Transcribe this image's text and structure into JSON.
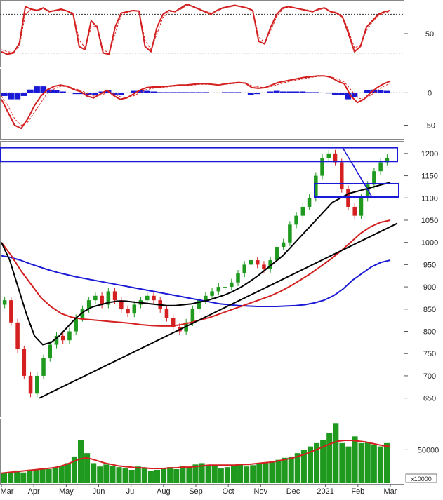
{
  "chart_data": [
    {
      "panel": "stochastic",
      "type": "line",
      "y_ticks": [
        50
      ],
      "ylim": [
        0,
        100
      ],
      "reference_levels": [
        80,
        20
      ],
      "series": [
        {
          "color": "#d42020",
          "style": "solid",
          "values": [
            22,
            18,
            20,
            35,
            92,
            88,
            86,
            90,
            84,
            86,
            88,
            85,
            80,
            30,
            25,
            70,
            60,
            20,
            18,
            60,
            82,
            84,
            86,
            85,
            30,
            22,
            60,
            80,
            86,
            84,
            90,
            96,
            92,
            88,
            84,
            80,
            86,
            90,
            92,
            94,
            92,
            90,
            86,
            38,
            34,
            60,
            80,
            90,
            92,
            90,
            88,
            86,
            84,
            88,
            90,
            84,
            82,
            76,
            50,
            22,
            30,
            60,
            70,
            80,
            84,
            86
          ]
        },
        {
          "color": "#d42020",
          "style": "dashed",
          "values": [
            25,
            22,
            21,
            30,
            80,
            88,
            87,
            88,
            86,
            85,
            87,
            86,
            82,
            40,
            28,
            60,
            62,
            25,
            20,
            50,
            78,
            83,
            85,
            85,
            40,
            25,
            50,
            75,
            84,
            85,
            88,
            94,
            93,
            89,
            85,
            82,
            85,
            89,
            91,
            93,
            92,
            90,
            87,
            45,
            36,
            55,
            76,
            88,
            91,
            90,
            88,
            87,
            85,
            87,
            89,
            85,
            83,
            78,
            55,
            28,
            32,
            55,
            68,
            78,
            82,
            85
          ]
        }
      ]
    },
    {
      "panel": "macd",
      "type": "line",
      "y_ticks": [
        0,
        -50
      ],
      "ylim": [
        -70,
        35
      ],
      "series": [
        {
          "color": "#d42020",
          "style": "solid",
          "values": [
            -10,
            -30,
            -50,
            -55,
            -40,
            -20,
            -5,
            5,
            10,
            12,
            10,
            5,
            2,
            -5,
            -8,
            -2,
            4,
            -4,
            -10,
            -8,
            -2,
            4,
            8,
            9,
            9,
            10,
            11,
            12,
            12,
            13,
            14,
            14,
            13,
            12,
            14,
            15,
            16,
            15,
            8,
            7,
            8,
            12,
            16,
            18,
            20,
            22,
            24,
            25,
            26,
            26,
            24,
            18,
            14,
            -5,
            -15,
            -10,
            0,
            8,
            14,
            18
          ]
        },
        {
          "color": "#d42020",
          "style": "dashed",
          "values": [
            -5,
            -20,
            -40,
            -50,
            -45,
            -30,
            -15,
            0,
            6,
            10,
            10,
            7,
            4,
            -1,
            -5,
            -4,
            0,
            -1,
            -6,
            -8,
            -5,
            0,
            5,
            7,
            8,
            9,
            10,
            11,
            11,
            12,
            13,
            13,
            13,
            12,
            13,
            14,
            15,
            15,
            11,
            9,
            8,
            10,
            13,
            16,
            18,
            20,
            22,
            24,
            25,
            26,
            25,
            21,
            17,
            5,
            -8,
            -10,
            -4,
            3,
            10,
            15
          ]
        },
        {
          "color": "#1a1ad6",
          "style": "histogram",
          "values": [
            -5,
            -10,
            -10,
            -5,
            5,
            10,
            10,
            5,
            4,
            2,
            0,
            -2,
            -2,
            -4,
            -3,
            2,
            4,
            -3,
            -4,
            0,
            3,
            4,
            3,
            2,
            1,
            1,
            1,
            1,
            1,
            1,
            1,
            1,
            0,
            0,
            1,
            1,
            1,
            0,
            -3,
            -2,
            0,
            2,
            3,
            2,
            2,
            2,
            2,
            1,
            1,
            0,
            -1,
            -3,
            -3,
            -10,
            -7,
            0,
            4,
            5,
            4,
            3
          ]
        }
      ]
    },
    {
      "panel": "price",
      "type": "candlestick",
      "y_ticks": [
        1200,
        1150,
        1100,
        1050,
        1000,
        950,
        900,
        850,
        800,
        750,
        700,
        650
      ],
      "ylim": [
        610,
        1225
      ],
      "close": [
        870,
        820,
        760,
        700,
        660,
        700,
        740,
        770,
        790,
        780,
        800,
        830,
        850,
        870,
        880,
        860,
        890,
        870,
        850,
        840,
        860,
        870,
        880,
        870,
        850,
        830,
        810,
        800,
        820,
        850,
        870,
        880,
        890,
        900,
        900,
        910,
        930,
        950,
        960,
        950,
        940,
        960,
        990,
        1000,
        1040,
        1060,
        1080,
        1100,
        1150,
        1190,
        1200,
        1180,
        1120,
        1080,
        1060,
        1100,
        1130,
        1160,
        1180,
        1190
      ],
      "sma_black": [
        1000,
        960,
        900,
        840,
        790,
        770,
        775,
        790,
        810,
        830,
        845,
        855,
        860,
        865,
        868,
        868,
        866,
        864,
        862,
        860,
        858,
        858,
        860,
        862,
        866,
        870,
        876,
        882,
        890,
        900,
        912,
        925,
        940,
        955,
        970,
        990,
        1010,
        1030,
        1050,
        1070,
        1090,
        1100,
        1110,
        1115,
        1120,
        1125,
        1130,
        1135
      ],
      "sma_red": [
        1000,
        970,
        935,
        905,
        875,
        855,
        840,
        832,
        828,
        826,
        824,
        822,
        820,
        818,
        815,
        813,
        812,
        812,
        815,
        820,
        826,
        832,
        840,
        848,
        856,
        864,
        872,
        880,
        890,
        902,
        916,
        930,
        946,
        962,
        980,
        1000,
        1020,
        1035,
        1045,
        1050
      ],
      "sma_blue": [
        970,
        966,
        960,
        952,
        945,
        938,
        932,
        927,
        922,
        918,
        914,
        910,
        906,
        902,
        898,
        894,
        890,
        886,
        882,
        878,
        874,
        870,
        866,
        862,
        860,
        858,
        857,
        856,
        856,
        856,
        857,
        858,
        860,
        864,
        870,
        880,
        895,
        915,
        930,
        945,
        955,
        960
      ],
      "trendlines": [
        {
          "from": [
            "Apr",
            650
          ],
          "to": [
            "Mar",
            1043
          ],
          "color": "#000000"
        }
      ],
      "boxes": [
        {
          "y_range": [
            1182,
            1213
          ],
          "color": "#1a1ad6"
        },
        {
          "y_range": [
            1102,
            1132
          ],
          "color": "#1a1ad6"
        }
      ]
    },
    {
      "panel": "volume",
      "type": "bar",
      "y_ticks": [
        50000
      ],
      "unit": "x10000",
      "volume": [
        15,
        17,
        19,
        16,
        18,
        20,
        22,
        21,
        24,
        26,
        30,
        40,
        65,
        45,
        30,
        25,
        28,
        26,
        24,
        22,
        20,
        25,
        22,
        18,
        20,
        22,
        24,
        21,
        26,
        24,
        28,
        30,
        26,
        27,
        22,
        24,
        26,
        28,
        25,
        27,
        29,
        30,
        32,
        35,
        38,
        40,
        45,
        50,
        55,
        60,
        65,
        75,
        90,
        60,
        55,
        70,
        60,
        62,
        58,
        55,
        60
      ],
      "volume_ma": [
        15,
        16,
        17,
        18,
        19,
        20,
        21,
        22,
        23,
        25,
        28,
        32,
        36,
        38,
        36,
        33,
        30,
        28,
        26,
        25,
        24,
        23,
        23,
        22,
        22,
        22,
        23,
        23,
        24,
        24,
        25,
        26,
        27,
        27,
        27,
        27,
        27,
        28,
        28,
        29,
        30,
        31,
        32,
        34,
        36,
        38,
        41,
        44,
        48,
        52,
        56,
        60,
        63,
        64,
        64,
        63,
        62,
        60,
        58,
        56,
        55
      ]
    }
  ],
  "x_axis": {
    "months": [
      "Mar",
      "Apr",
      "May",
      "Jun",
      "Jul",
      "Aug",
      "Sep",
      "Oct",
      "Nov",
      "Dec",
      "2021",
      "Feb",
      "Mar"
    ]
  },
  "volume_unit_label": "x10000"
}
